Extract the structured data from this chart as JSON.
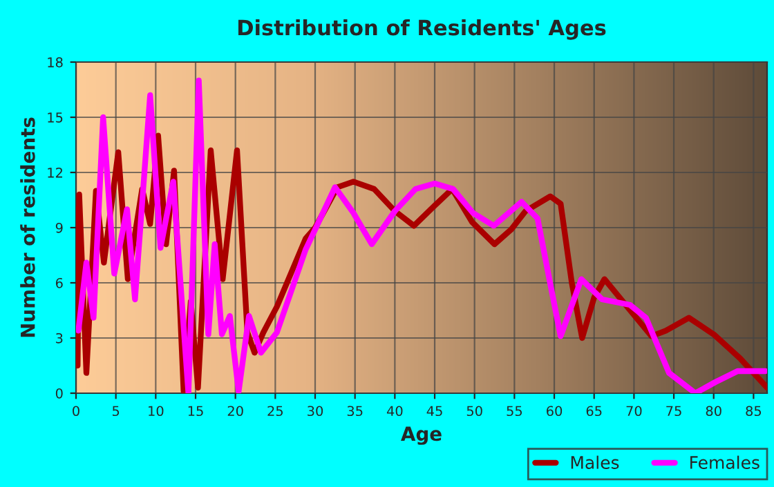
{
  "chart_data": {
    "type": "line",
    "title": "Distribution of Residents' Ages",
    "xlabel": "Age",
    "ylabel": "Number of residents",
    "xlim": [
      0,
      86.7
    ],
    "xticks": [
      0,
      5,
      10,
      15,
      20,
      25,
      30,
      35,
      40,
      45,
      50,
      55,
      60,
      65,
      70,
      75,
      80,
      85
    ],
    "ylim": [
      0,
      18
    ],
    "yticks": [
      0,
      3,
      6,
      9,
      12,
      15,
      18
    ],
    "grid": true,
    "legend": "bottom right",
    "line_style": "solid",
    "marker": "none",
    "series": [
      {
        "name": "Males",
        "color": "#aa0000",
        "x": [
          0,
          0.2,
          0.4,
          1.3,
          2.5,
          3.5,
          5.3,
          6.5,
          8.3,
          9.3,
          10.3,
          11.3,
          12.3,
          13.5,
          14.4,
          15.3,
          16.9,
          18.4,
          20.2,
          21.5,
          22.4,
          23.5,
          25.2,
          28.8,
          30,
          32.8,
          34.8,
          37.4,
          40,
          42.4,
          45,
          47.2,
          49.7,
          52.5,
          54.6,
          56.4,
          59.5,
          60.8,
          62.2,
          63.5,
          65,
          66.3,
          68.2,
          72.2,
          74,
          76.9,
          80,
          83.3,
          86.7
        ],
        "values": [
          10,
          1.5,
          10.8,
          1.1,
          11,
          7.1,
          13.1,
          6.2,
          11.1,
          9.2,
          14,
          8.1,
          12.1,
          0.1,
          5,
          0.3,
          13.2,
          6.2,
          13.2,
          3.3,
          2.2,
          3.3,
          4.7,
          8.4,
          9,
          11.2,
          11.5,
          11.1,
          9.9,
          9.1,
          10.2,
          11.1,
          9.3,
          8.1,
          8.9,
          9.9,
          10.7,
          10.3,
          6,
          3,
          5.2,
          6.2,
          5.2,
          3.1,
          3.4,
          4.1,
          3.2,
          1.9,
          0.3
        ]
      },
      {
        "name": "Females",
        "color": "#ff00ff",
        "x": [
          0.3,
          1.3,
          2.2,
          3.4,
          4.8,
          6.4,
          7.4,
          9.3,
          10.6,
          12.2,
          14.1,
          15.4,
          16.6,
          17.4,
          18.3,
          19.3,
          20.4,
          21.7,
          23.2,
          25.2,
          28.8,
          30,
          32.5,
          34.8,
          37.1,
          40,
          42.6,
          45,
          47.3,
          49.8,
          52.4,
          55.9,
          57.9,
          59.7,
          60.8,
          63.4,
          66,
          69.5,
          71.5,
          74.4,
          77.7,
          80.2,
          83,
          86.5
        ],
        "values": [
          3.4,
          7.1,
          4.1,
          15,
          6.5,
          10,
          5.1,
          16.2,
          7.9,
          11.5,
          0,
          17,
          3.2,
          8.1,
          3.2,
          4.2,
          0.1,
          4.2,
          2.2,
          3.3,
          7.8,
          8.9,
          11.2,
          9.8,
          8.1,
          9.9,
          11.1,
          11.4,
          11.1,
          9.8,
          9.1,
          10.4,
          9.5,
          5.5,
          3.1,
          6.2,
          5.1,
          4.8,
          4.1,
          1.1,
          0,
          0.6,
          1.2,
          1.2
        ]
      }
    ]
  }
}
